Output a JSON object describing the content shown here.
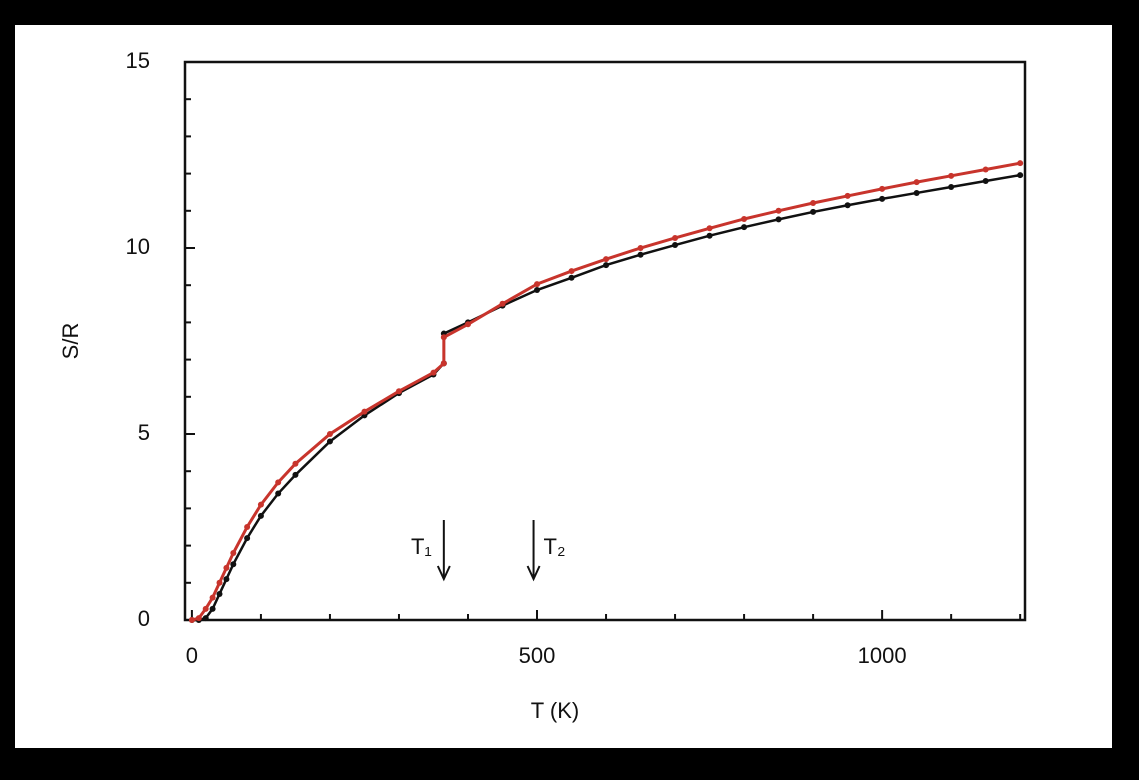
{
  "chart_data": {
    "type": "line",
    "xlabel": "T (K)",
    "ylabel": "S/R",
    "xlim": [
      -10,
      1207
    ],
    "ylim": [
      0,
      15
    ],
    "xticks": [
      0,
      500,
      1000
    ],
    "yticks": [
      0,
      5,
      10,
      15
    ],
    "xminorticks": [
      100,
      200,
      300,
      400,
      600,
      700,
      800,
      900,
      1100,
      1200
    ],
    "yminorticks": [
      1,
      2,
      3,
      4,
      6,
      7,
      8,
      9,
      11,
      12,
      13,
      14
    ],
    "x": [
      0,
      10,
      20,
      30,
      40,
      50,
      60,
      80,
      100,
      125,
      150,
      200,
      250,
      300,
      350,
      365,
      365,
      400,
      450,
      500,
      550,
      600,
      650,
      700,
      750,
      800,
      850,
      900,
      950,
      1000,
      1050,
      1100,
      1150,
      1200
    ],
    "series": [
      {
        "color": "#111111",
        "values": [
          0,
          0,
          0.05,
          0.3,
          0.7,
          1.1,
          1.5,
          2.2,
          2.8,
          3.4,
          3.9,
          4.8,
          5.5,
          6.1,
          6.6,
          6.9,
          7.7,
          8.0,
          8.45,
          8.87,
          9.2,
          9.54,
          9.82,
          10.08,
          10.33,
          10.56,
          10.77,
          10.97,
          11.15,
          11.32,
          11.48,
          11.64,
          11.8,
          11.96
        ]
      },
      {
        "color": "#c8342c",
        "values": [
          0,
          0.05,
          0.3,
          0.6,
          1.0,
          1.4,
          1.8,
          2.5,
          3.1,
          3.7,
          4.2,
          5.0,
          5.6,
          6.15,
          6.65,
          6.9,
          7.6,
          7.95,
          8.5,
          9.03,
          9.38,
          9.7,
          10.0,
          10.27,
          10.53,
          10.78,
          11.0,
          11.21,
          11.4,
          11.59,
          11.77,
          11.94,
          12.11,
          12.28
        ]
      }
    ],
    "annotations": [
      {
        "text": "T₁",
        "x": 365
      },
      {
        "text": "T₂",
        "x": 495
      }
    ]
  }
}
